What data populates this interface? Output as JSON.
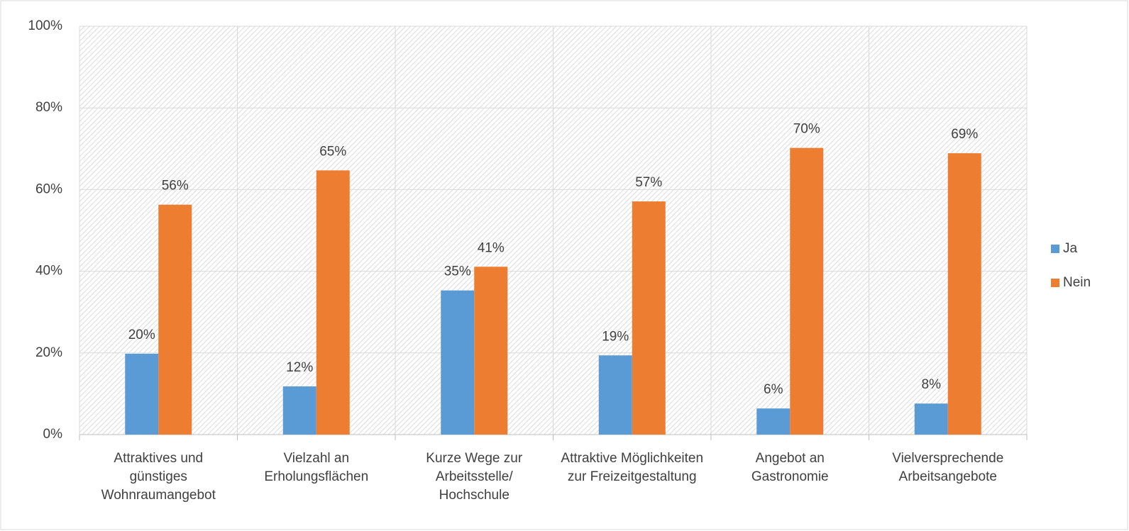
{
  "chart_data": {
    "type": "bar",
    "categories": [
      "Attraktives und günstiges Wohnraumangebot",
      "Vielzahl an Erholungsflächen",
      "Kurze Wege zur Arbeitsstelle/ Hochschule",
      "Attraktive Möglichkeiten zur Freizeitgestaltung",
      "Angebot an Gastronomie",
      "Vielversprechende Arbeitsangebote"
    ],
    "series": [
      {
        "name": "Ja",
        "color": "#5b9bd5",
        "values": [
          19.8,
          11.8,
          35.3,
          19.4,
          6.4,
          7.6
        ],
        "value_labels": [
          "20%",
          "12%",
          "35%",
          "19%",
          "6%",
          "8%"
        ]
      },
      {
        "name": "Nein",
        "color": "#ed7d31",
        "values": [
          56.3,
          64.7,
          41.1,
          57.1,
          70.2,
          68.9
        ],
        "value_labels": [
          "56%",
          "65%",
          "41%",
          "57%",
          "70%",
          "69%"
        ]
      }
    ],
    "ylim": [
      0,
      100
    ],
    "yticks": [
      {
        "value": 0,
        "label": "0%"
      },
      {
        "value": 20,
        "label": "20%"
      },
      {
        "value": 40,
        "label": "40%"
      },
      {
        "value": 60,
        "label": "60%"
      },
      {
        "value": 80,
        "label": "80%"
      },
      {
        "value": 100,
        "label": "100%"
      }
    ],
    "grid": true,
    "legend": "right"
  }
}
